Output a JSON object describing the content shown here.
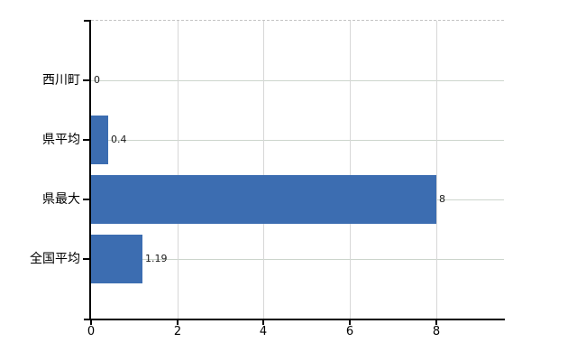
{
  "chart_data": {
    "type": "bar",
    "orientation": "horizontal",
    "title": "",
    "categories": [
      "西川町",
      "県平均",
      "県最大",
      "全国平均"
    ],
    "values": [
      0,
      0.4,
      8,
      1.19
    ],
    "value_labels": [
      "0",
      "0.4",
      "8",
      "1.19"
    ],
    "x_ticks": [
      0,
      2,
      4,
      6,
      8
    ],
    "x_tick_labels": [
      "0",
      "2",
      "4",
      "6",
      "8"
    ],
    "xlim": [
      0,
      9.57
    ],
    "ylabel": "",
    "xlabel": "",
    "grid": true,
    "legend": "none",
    "colors": {
      "bar": "#3c6db1",
      "axis": "#000000",
      "gridline_vertical": "#d7d7d7",
      "gridline_horizontal": "#ccd5cc",
      "top_border": "#c3c3c3",
      "category_text": "#000000",
      "value_text": "#1a1a1a",
      "tick_text": "#000000",
      "background": "#ffffff"
    }
  }
}
